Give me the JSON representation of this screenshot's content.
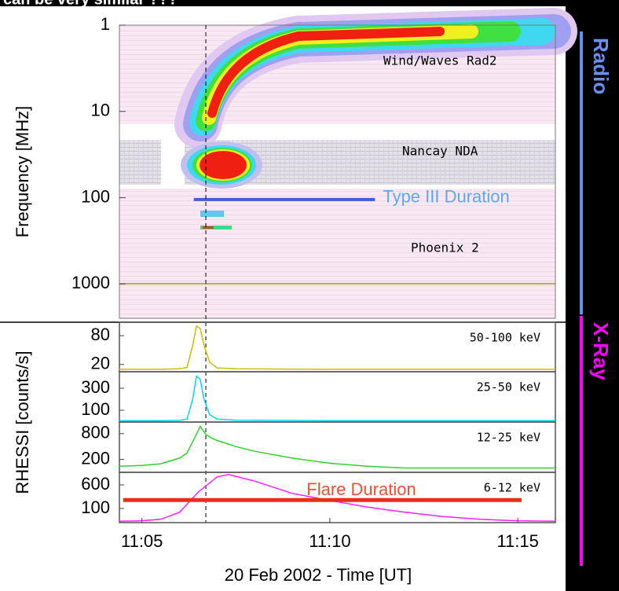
{
  "header_text": "can be very similar ???",
  "side_labels": [
    {
      "text": "Radio",
      "color": "#6b8ff0"
    },
    {
      "text": "X-Ray",
      "color": "#ff00ff"
    }
  ],
  "chart_data": [
    {
      "type": "spectrogram",
      "ylabel": "Frequency [MHz]",
      "yscale": "log",
      "ylim": [
        1,
        2500
      ],
      "yticks": [
        1,
        10,
        100,
        1000
      ],
      "xlim": [
        664.4,
        676.0
      ],
      "marker_time": 666.7,
      "annotations": [
        "Wind/Waves Rad2",
        "Nancay NDA",
        "Phoenix 2"
      ],
      "bar": {
        "label": "Type III Duration",
        "x": [
          666.38,
          671.2
        ],
        "y": 105,
        "color": "#3f5fd6",
        "label_color": "#5fa8f0"
      }
    },
    {
      "type": "multi-line",
      "ylabel": "RHESSI [counts/s]",
      "xlabel": "20 Feb 2002 - Time [UT]",
      "xlim": [
        664.4,
        676.0
      ],
      "xticks": [
        {
          "value": 665,
          "label": "11:05"
        },
        {
          "value": 670,
          "label": "11:10"
        },
        {
          "value": 675,
          "label": "11:15"
        }
      ],
      "panels": [
        {
          "name": "50-100 keV",
          "color": "#c8c000",
          "ylim": [
            5,
            108
          ],
          "yticks": [
            20,
            80
          ],
          "x": [
            664.4,
            665.5,
            666.0,
            666.2,
            666.35,
            666.45,
            666.55,
            666.65,
            666.8,
            667.0,
            667.5,
            670,
            676
          ],
          "values": [
            10,
            10,
            11,
            14,
            60,
            100,
            95,
            60,
            25,
            13,
            11,
            10,
            10
          ]
        },
        {
          "name": "25-50 keV",
          "color": "#00d8f0",
          "ylim": [
            -7,
            450
          ],
          "yticks": [
            100,
            300
          ],
          "x": [
            664.4,
            665.5,
            666.0,
            666.2,
            666.35,
            666.45,
            666.55,
            666.65,
            666.8,
            667.0,
            667.5,
            670,
            676
          ],
          "values": [
            5,
            5,
            8,
            20,
            200,
            410,
            380,
            200,
            60,
            20,
            10,
            6,
            5
          ]
        },
        {
          "name": "12-25 keV",
          "color": "#30d030",
          "ylim": [
            -100,
            1070
          ],
          "yticks": [
            200,
            800
          ],
          "x": [
            664.4,
            665.0,
            665.5,
            666.0,
            666.2,
            666.4,
            666.55,
            666.7,
            666.85,
            667.0,
            667.5,
            668,
            669,
            670,
            671,
            672,
            673,
            676
          ],
          "values": [
            40,
            60,
            100,
            230,
            350,
            700,
            970,
            780,
            700,
            640,
            500,
            390,
            230,
            110,
            40,
            0,
            0,
            0
          ]
        },
        {
          "name": "6-12 keV",
          "color": "#ff20ff",
          "ylim": [
            -200,
            867
          ],
          "yticks": [
            100,
            600
          ],
          "x": [
            664.4,
            665.0,
            665.5,
            666.0,
            666.5,
            667.0,
            667.3,
            668,
            669,
            670,
            671,
            672,
            673,
            674,
            675,
            676
          ],
          "values": [
            -170,
            -160,
            -130,
            20,
            450,
            770,
            820,
            680,
            420,
            270,
            130,
            20,
            -70,
            -130,
            -160,
            -170
          ]
        }
      ],
      "bar": {
        "label": "Flare Duration",
        "x": [
          664.5,
          675.1
        ],
        "y": 280,
        "color": "#e83010",
        "label_color": "#f05030"
      }
    }
  ]
}
